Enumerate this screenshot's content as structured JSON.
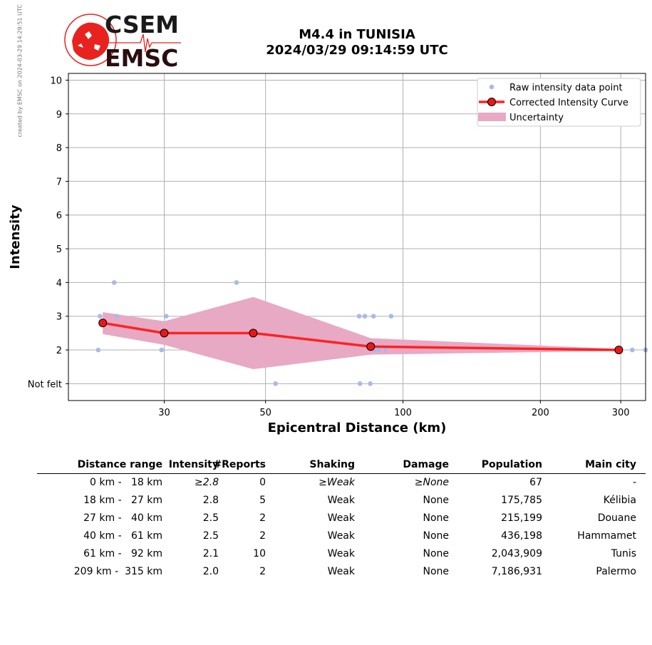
{
  "side_note": "created by EMSC on 2024-03-29 14:29:51 UTC",
  "logo": {
    "line1": "CSEM",
    "line2": "EMSC",
    "color": "#e8231f"
  },
  "title": {
    "line1": "M4.4 in TUNISIA",
    "line2": "2024/03/29 09:14:59 UTC"
  },
  "chart_data": {
    "type": "scatter",
    "xlabel": "Epicentral Distance (km)",
    "ylabel": "Intensity",
    "x_scale": "log",
    "xlim": [
      18.5,
      340
    ],
    "ylim": [
      0.5,
      10.2
    ],
    "x_ticks": [
      30,
      50,
      100,
      200,
      300
    ],
    "y_ticks": [
      {
        "value": 1,
        "label": "Not felt"
      },
      {
        "value": 2,
        "label": "2"
      },
      {
        "value": 3,
        "label": "3"
      },
      {
        "value": 4,
        "label": "4"
      },
      {
        "value": 5,
        "label": "5"
      },
      {
        "value": 6,
        "label": "6"
      },
      {
        "value": 7,
        "label": "7"
      },
      {
        "value": 8,
        "label": "8"
      },
      {
        "value": 9,
        "label": "9"
      },
      {
        "value": 10,
        "label": "10"
      }
    ],
    "grid": true,
    "legend_position": "top-right",
    "series": [
      {
        "name": "Raw intensity data point",
        "kind": "points",
        "color": "#a9b9e8",
        "x": [
          21.5,
          21.7,
          23.3,
          23.6,
          29.6,
          30.3,
          43.2,
          52.6,
          80.2,
          80.5,
          82.5,
          84.8,
          86.2,
          86.5,
          88.6,
          91.6,
          94.2,
          295,
          318,
          340
        ],
        "y": [
          2,
          3,
          4,
          3,
          2,
          3,
          4,
          1,
          3,
          1,
          3,
          1,
          3,
          2,
          2,
          2,
          3,
          2,
          2,
          2
        ]
      },
      {
        "name": "Corrected Intensity Curve",
        "kind": "line",
        "color": "#ff2222",
        "marker_color": "#e81818",
        "x": [
          22,
          30,
          47,
          85,
          297
        ],
        "y": [
          2.8,
          2.5,
          2.5,
          2.1,
          2.0
        ]
      },
      {
        "name": "Uncertainty",
        "kind": "band",
        "color": "#e8a9c4",
        "x": [
          22,
          30,
          47,
          85,
          297
        ],
        "upper": [
          3.12,
          2.85,
          3.57,
          2.35,
          2.03
        ],
        "lower": [
          2.47,
          2.15,
          1.43,
          1.86,
          1.97
        ]
      }
    ]
  },
  "table": {
    "headers": [
      "Distance range",
      "Intensity",
      "#Reports",
      "Shaking",
      "Damage",
      "Population",
      "Main city"
    ],
    "rows": [
      {
        "range": "0 km -   18 km",
        "intensity": "≥2.8",
        "reports": "0",
        "shaking": "≥Weak",
        "damage": "≥None",
        "population": "67",
        "city": "-",
        "italic": true
      },
      {
        "range": "18 km -   27 km",
        "intensity": "2.8",
        "reports": "5",
        "shaking": "Weak",
        "damage": "None",
        "population": "175,785",
        "city": "Kélibia",
        "italic": false
      },
      {
        "range": "27 km -   40 km",
        "intensity": "2.5",
        "reports": "2",
        "shaking": "Weak",
        "damage": "None",
        "population": "215,199",
        "city": "Douane",
        "italic": false
      },
      {
        "range": "40 km -   61 km",
        "intensity": "2.5",
        "reports": "2",
        "shaking": "Weak",
        "damage": "None",
        "population": "436,198",
        "city": "Hammamet",
        "italic": false
      },
      {
        "range": "61 km -   92 km",
        "intensity": "2.1",
        "reports": "10",
        "shaking": "Weak",
        "damage": "None",
        "population": "2,043,909",
        "city": "Tunis",
        "italic": false
      },
      {
        "range": "209 km -  315 km",
        "intensity": "2.0",
        "reports": "2",
        "shaking": "Weak",
        "damage": "None",
        "population": "7,186,931",
        "city": "Palermo",
        "italic": false
      }
    ]
  }
}
